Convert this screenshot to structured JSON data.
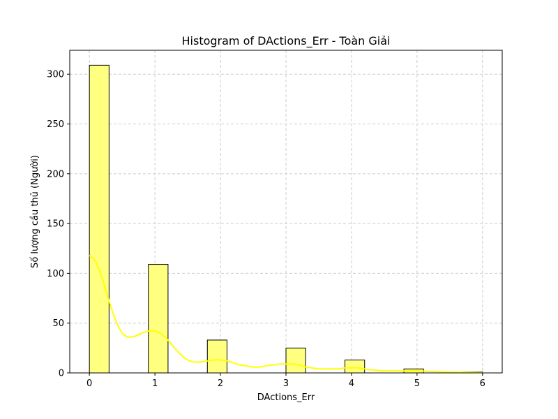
{
  "chart_data": {
    "type": "bar",
    "title": "Histogram of DActions_Err - Toàn Giải",
    "xlabel": "DActions_Err",
    "ylabel": "Số lượng cầu thủ (Người)",
    "xlim": [
      -0.3,
      6.3
    ],
    "ylim": [
      0,
      324
    ],
    "grid": true,
    "x_ticks": [
      0,
      1,
      2,
      3,
      4,
      5,
      6
    ],
    "y_ticks": [
      0,
      50,
      100,
      150,
      200,
      250,
      300
    ],
    "bins": [
      {
        "x0": 0.0,
        "x1": 0.3,
        "count": 309
      },
      {
        "x0": 0.3,
        "x1": 0.6,
        "count": 0
      },
      {
        "x0": 0.6,
        "x1": 0.9,
        "count": 0
      },
      {
        "x0": 0.9,
        "x1": 1.2,
        "count": 109
      },
      {
        "x0": 1.2,
        "x1": 1.5,
        "count": 0
      },
      {
        "x0": 1.5,
        "x1": 1.8,
        "count": 0
      },
      {
        "x0": 1.8,
        "x1": 2.1,
        "count": 33
      },
      {
        "x0": 2.1,
        "x1": 2.4,
        "count": 0
      },
      {
        "x0": 2.4,
        "x1": 2.7,
        "count": 0
      },
      {
        "x0": 2.7,
        "x1": 3.0,
        "count": 0
      },
      {
        "x0": 3.0,
        "x1": 3.3,
        "count": 25
      },
      {
        "x0": 3.3,
        "x1": 3.6,
        "count": 0
      },
      {
        "x0": 3.6,
        "x1": 3.9,
        "count": 0
      },
      {
        "x0": 3.9,
        "x1": 4.2,
        "count": 13
      },
      {
        "x0": 4.2,
        "x1": 4.5,
        "count": 0
      },
      {
        "x0": 4.5,
        "x1": 4.8,
        "count": 0
      },
      {
        "x0": 4.8,
        "x1": 5.1,
        "count": 4
      },
      {
        "x0": 5.1,
        "x1": 5.4,
        "count": 0
      },
      {
        "x0": 5.4,
        "x1": 5.7,
        "count": 0
      },
      {
        "x0": 5.7,
        "x1": 6.0,
        "count": 1
      }
    ],
    "kde": {
      "x": [
        0,
        0.1,
        0.2,
        0.3,
        0.4,
        0.5,
        0.6,
        0.7,
        0.8,
        0.9,
        1.0,
        1.1,
        1.2,
        1.3,
        1.4,
        1.5,
        1.6,
        1.7,
        1.8,
        1.9,
        2.0,
        2.1,
        2.2,
        2.3,
        2.4,
        2.5,
        2.6,
        2.7,
        2.8,
        2.9,
        3.0,
        3.1,
        3.2,
        3.3,
        3.4,
        3.5,
        3.6,
        3.7,
        3.8,
        3.9,
        4.0,
        4.1,
        4.2,
        4.3,
        4.4,
        4.5,
        4.6,
        4.7,
        4.8,
        4.9,
        5.0,
        5.2,
        5.4,
        5.6,
        5.8,
        6.0
      ],
      "y": [
        118,
        111,
        94,
        72,
        53,
        40,
        36,
        37,
        40,
        42,
        42,
        39,
        33,
        25,
        18,
        13,
        11,
        11,
        12,
        13,
        13,
        12,
        10,
        8,
        7,
        6,
        6,
        7,
        8,
        9,
        9,
        9,
        8,
        6,
        5,
        4,
        4,
        4,
        4,
        5,
        5,
        5,
        4,
        3,
        2.5,
        2,
        2,
        2,
        2,
        2,
        2,
        1.5,
        1,
        0.7,
        0.5,
        0.3
      ]
    },
    "colors": {
      "bar_fill": "#ffff80",
      "bar_edge": "#000000",
      "kde_line": "#ffff00",
      "grid": "#cccccc"
    }
  }
}
